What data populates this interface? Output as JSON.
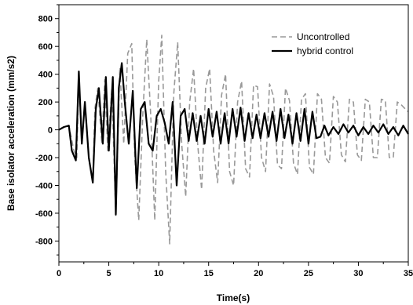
{
  "chart_data": {
    "type": "line",
    "xlabel": "Time(s)",
    "ylabel": "Base isolator acceleration (mm/s2)",
    "xlim": [
      0,
      35
    ],
    "ylim": [
      -950,
      900
    ],
    "xticks": [
      0,
      5,
      10,
      15,
      20,
      25,
      30,
      35
    ],
    "yticks": [
      -800,
      -600,
      -400,
      -200,
      0,
      200,
      400,
      600,
      800
    ],
    "grid": false,
    "legend_position": "top-right",
    "series": [
      {
        "name": "Uncontrolled",
        "style": "dashed",
        "color": "#999999",
        "x": [
          0,
          0.5,
          1.0,
          1.5,
          1.8,
          2.0,
          2.3,
          2.6,
          3.0,
          3.4,
          3.6,
          3.9,
          4.3,
          4.6,
          4.9,
          5.3,
          5.7,
          6.1,
          6.5,
          6.9,
          7.3,
          7.6,
          8.0,
          8.4,
          8.8,
          9.2,
          9.6,
          10.0,
          10.3,
          10.7,
          11.1,
          11.5,
          11.9,
          12.3,
          12.7,
          13.1,
          13.5,
          13.9,
          14.3,
          14.7,
          15.1,
          15.5,
          15.9,
          16.3,
          16.7,
          17.1,
          17.5,
          17.9,
          18.3,
          18.7,
          19.1,
          19.5,
          19.9,
          20.3,
          20.7,
          21.1,
          21.5,
          21.9,
          22.3,
          22.7,
          23.1,
          23.5,
          23.9,
          24.3,
          24.7,
          25.1,
          25.5,
          25.9,
          26.3,
          26.7,
          27.1,
          27.5,
          27.9,
          28.3,
          28.7,
          29.1,
          29.5,
          29.9,
          30.3,
          30.7,
          31.1,
          31.5,
          31.9,
          32.3,
          32.7,
          33.1,
          33.5,
          33.9,
          34.3,
          34.7,
          35.0
        ],
        "y": [
          0,
          20,
          30,
          -150,
          -200,
          380,
          -100,
          200,
          -200,
          -380,
          150,
          300,
          -100,
          360,
          -150,
          300,
          -620,
          450,
          -100,
          550,
          620,
          -200,
          -650,
          100,
          650,
          100,
          -650,
          350,
          680,
          -300,
          -820,
          250,
          630,
          -100,
          -480,
          200,
          440,
          -100,
          -430,
          300,
          440,
          -150,
          -380,
          250,
          400,
          -300,
          -400,
          200,
          350,
          -280,
          -340,
          320,
          310,
          -200,
          -300,
          330,
          240,
          -250,
          -280,
          300,
          210,
          -240,
          -320,
          220,
          260,
          -270,
          -320,
          260,
          220,
          -200,
          -240,
          240,
          200,
          -180,
          -230,
          220,
          200,
          -180,
          -220,
          220,
          200,
          -200,
          -200,
          220,
          210,
          -200,
          -200,
          200,
          180,
          150,
          130
        ]
      },
      {
        "name": "hybrid control",
        "style": "solid",
        "color": "#000000",
        "x": [
          0,
          0.5,
          1.0,
          1.3,
          1.7,
          2.0,
          2.3,
          2.6,
          3.0,
          3.4,
          3.7,
          4.0,
          4.4,
          4.7,
          5.0,
          5.4,
          5.7,
          6.0,
          6.3,
          6.6,
          7.0,
          7.4,
          7.8,
          8.2,
          8.6,
          9.0,
          9.4,
          9.8,
          10.2,
          10.6,
          11.0,
          11.4,
          11.8,
          12.2,
          12.6,
          13.0,
          13.4,
          13.8,
          14.2,
          14.6,
          15.0,
          15.4,
          15.8,
          16.2,
          16.6,
          17.0,
          17.4,
          17.8,
          18.2,
          18.6,
          19.0,
          19.4,
          19.8,
          20.2,
          20.6,
          21.0,
          21.4,
          21.8,
          22.2,
          22.6,
          23.0,
          23.4,
          23.8,
          24.2,
          24.6,
          25.0,
          25.4,
          25.8,
          26.2,
          26.6,
          27.0,
          27.5,
          28.0,
          28.5,
          29.0,
          29.5,
          30.0,
          30.5,
          31.0,
          31.5,
          32.0,
          32.5,
          33.0,
          33.5,
          34.0,
          34.5,
          35.0
        ],
        "y": [
          0,
          20,
          30,
          -150,
          -220,
          420,
          -100,
          200,
          -200,
          -380,
          150,
          300,
          -100,
          380,
          -150,
          380,
          -610,
          300,
          480,
          200,
          -100,
          280,
          -420,
          150,
          200,
          -100,
          -150,
          100,
          150,
          50,
          -100,
          200,
          -400,
          100,
          150,
          -80,
          120,
          -80,
          100,
          -100,
          150,
          -50,
          130,
          -100,
          120,
          -100,
          150,
          -50,
          160,
          -80,
          120,
          -60,
          110,
          -60,
          120,
          -50,
          130,
          -80,
          150,
          -60,
          110,
          -100,
          120,
          -80,
          150,
          -100,
          130,
          -60,
          -50,
          30,
          -40,
          20,
          -30,
          40,
          -20,
          30,
          -40,
          20,
          -30,
          30,
          -20,
          40,
          -30,
          20,
          -40,
          30,
          -30
        ]
      }
    ]
  }
}
